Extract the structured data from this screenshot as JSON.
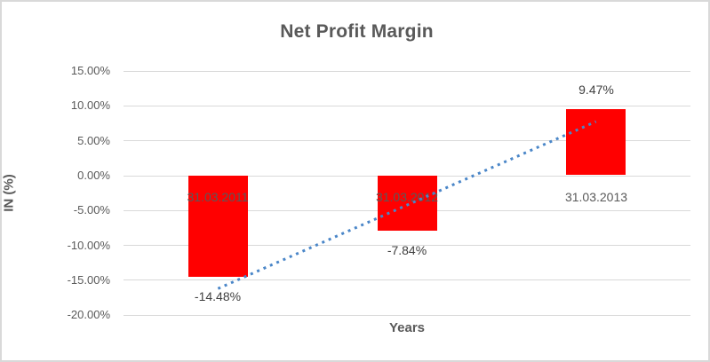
{
  "chart_data": {
    "type": "bar",
    "title": "Net Profit Margin",
    "xlabel": "Years",
    "ylabel": "IN (%)",
    "categories": [
      "31.03.2011",
      "31.03.2012",
      "31.03.2013"
    ],
    "values": [
      -14.48,
      -7.84,
      9.47
    ],
    "data_labels": [
      "-14.48%",
      "-7.84%",
      "9.47%"
    ],
    "y_ticks": [
      {
        "label": "15.00%",
        "value": 15
      },
      {
        "label": "10.00%",
        "value": 10
      },
      {
        "label": "5.00%",
        "value": 5
      },
      {
        "label": "0.00%",
        "value": 0
      },
      {
        "label": "-5.00%",
        "value": -5
      },
      {
        "label": "-10.00%",
        "value": -10
      },
      {
        "label": "-15.00%",
        "value": -15
      },
      {
        "label": "-20.00%",
        "value": -20
      }
    ],
    "ylim": [
      -20,
      15
    ],
    "grid": true,
    "legend": "none",
    "trendline": {
      "type": "linear",
      "style": "dotted"
    },
    "colors": {
      "bar": "#FF0000",
      "trendline": "#4A86C8",
      "title_text": "#595959",
      "axis_text": "#595959",
      "data_label_text": "#404040",
      "gridline": "#D9D9D9",
      "border": "#D9D9D9",
      "background": "#FFFFFF"
    }
  }
}
